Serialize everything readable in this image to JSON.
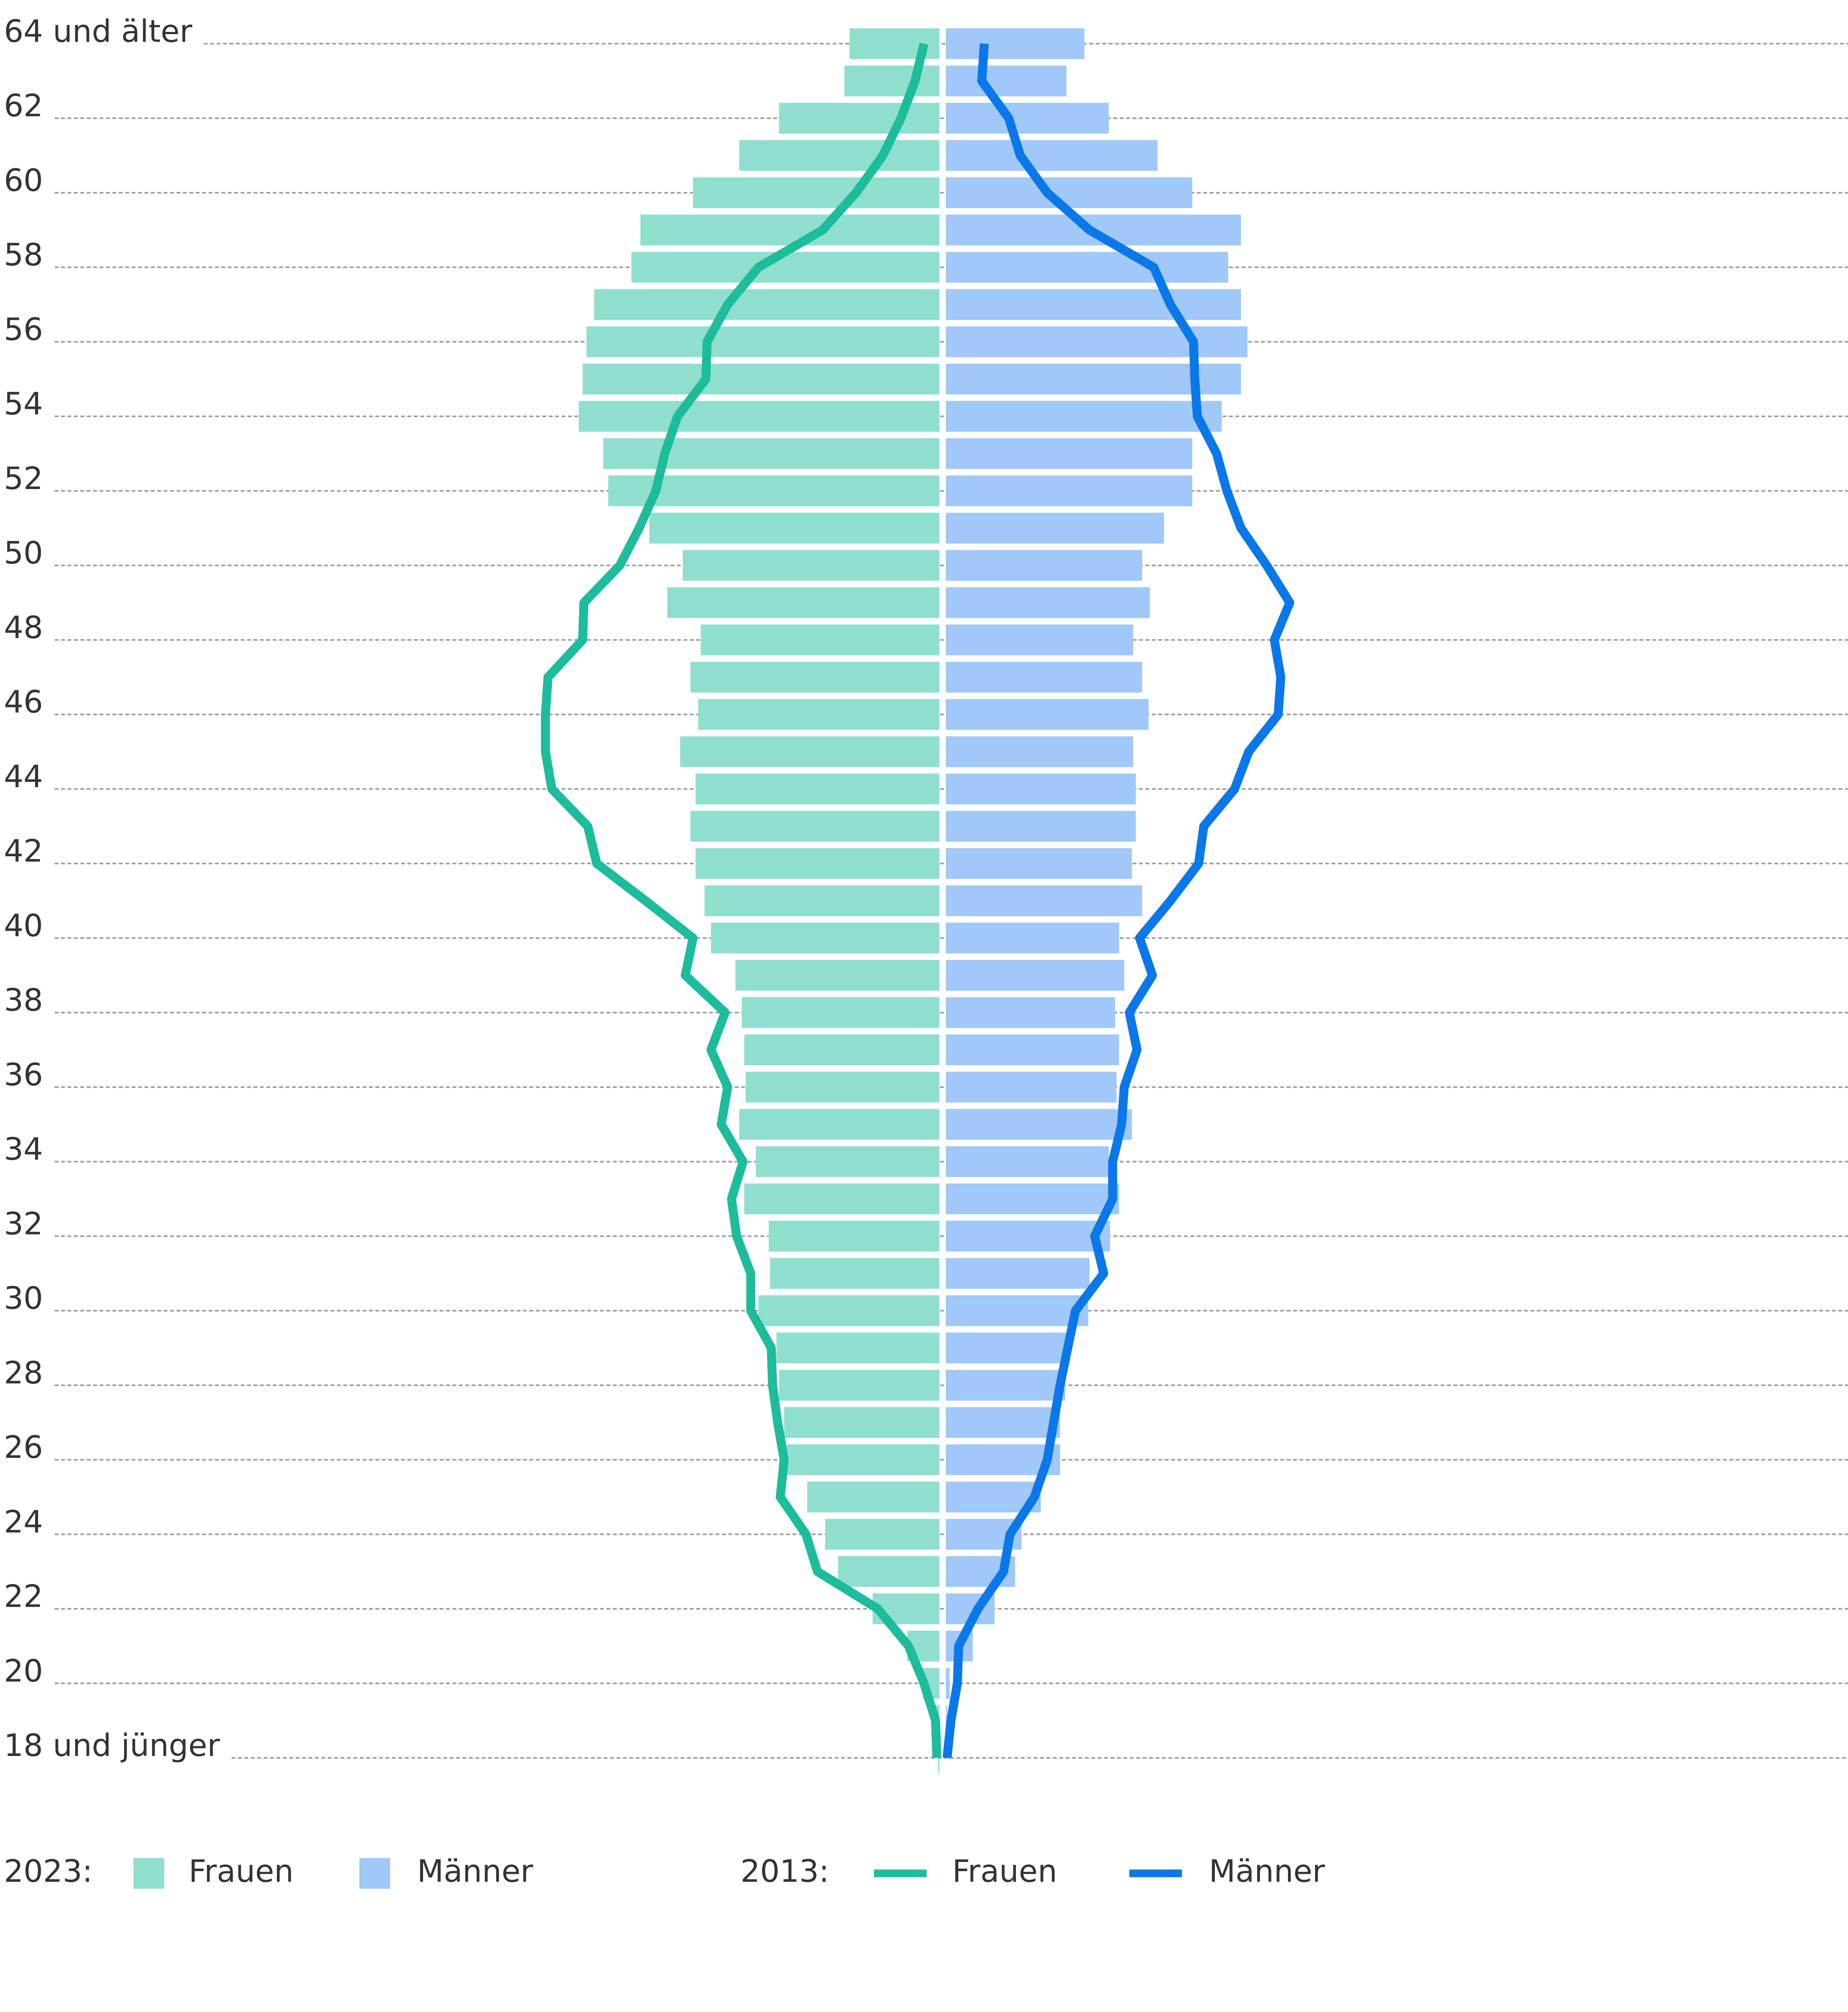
{
  "chart_data": {
    "type": "pyramid",
    "categories": [
      "64 und älter",
      null,
      "62",
      null,
      "60",
      null,
      "58",
      null,
      "56",
      null,
      "54",
      null,
      "52",
      null,
      "50",
      null,
      "48",
      null,
      "46",
      null,
      "44",
      null,
      "42",
      null,
      "40",
      null,
      "38",
      null,
      "36",
      null,
      "34",
      null,
      "32",
      null,
      "30",
      null,
      "28",
      null,
      "26",
      null,
      "24",
      null,
      "22",
      null,
      "20",
      null,
      "18 und jünger"
    ],
    "grid": true,
    "groups": [
      {
        "label": "2023:",
        "mark": "bar",
        "series": [
          {
            "name": "Frauen",
            "side": "left",
            "color": "#8fdfcf",
            "values": [
              70,
              74,
              125,
              156,
              192,
              233,
              240,
              269,
              275,
              278,
              281,
              262,
              258,
              226,
              200,
              212,
              186,
              194,
              188,
              202,
              190,
              194,
              190,
              183,
              178,
              159,
              154,
              152,
              151,
              156,
              143,
              152,
              133,
              132,
              141,
              127,
              125,
              121,
              119,
              103,
              89,
              79,
              52,
              25,
              13,
              3,
              1
            ]
          },
          {
            "name": "Männer",
            "side": "right",
            "color": "#a0c8f8",
            "values": [
              108,
              94,
              127,
              165,
              192,
              230,
              220,
              230,
              235,
              230,
              215,
              192,
              192,
              170,
              153,
              159,
              146,
              153,
              158,
              146,
              148,
              148,
              145,
              153,
              135,
              139,
              132,
              135,
              133,
              145,
              127,
              135,
              128,
              112,
              111,
              95,
              93,
              89,
              89,
              74,
              59,
              54,
              38,
              21,
              3,
              1,
              0
            ]
          }
        ]
      },
      {
        "label": "2013:",
        "mark": "line",
        "series": [
          {
            "name": "Frauen",
            "side": "left",
            "color": "#1cbc9c",
            "values": [
              12,
              19,
              30,
              44,
              65,
              91,
              141,
              165,
              181,
              182,
              204,
              214,
              221,
              234,
              249,
              277,
              278,
              305,
              307,
              307,
              302,
              274,
              267,
              229,
              192,
              198,
              167,
              178,
              165,
              170,
              153,
              162,
              158,
              147,
              147,
              131,
              130,
              126,
              121,
              124,
              104,
              95,
              48,
              24,
              12,
              3,
              2
            ]
          },
          {
            "name": "Männer",
            "side": "right",
            "color": "#0a78e8",
            "values": [
              30,
              28,
              49,
              58,
              79,
              112,
              162,
              175,
              193,
              194,
              196,
              211,
              219,
              230,
              250,
              268,
              256,
              261,
              259,
              236,
              225,
              201,
              197,
              175,
              151,
              161,
              143,
              149,
              139,
              137,
              130,
              130,
              116,
              123,
              101,
              95,
              89,
              84,
              79,
              69,
              50,
              45,
              25,
              10,
              9,
              4,
              1
            ]
          }
        ]
      }
    ]
  }
}
